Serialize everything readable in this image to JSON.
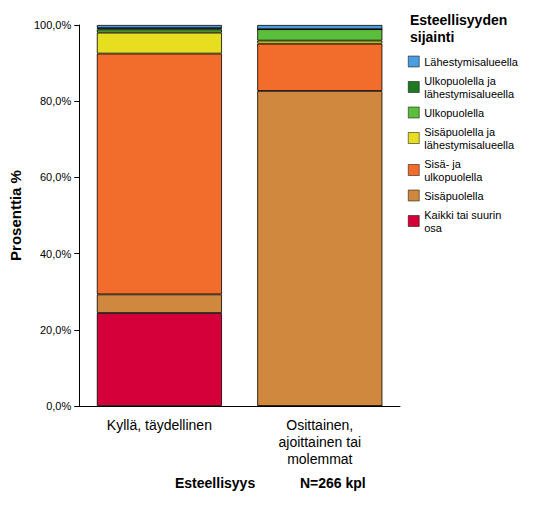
{
  "chart_data": {
    "type": "bar",
    "stacked": true,
    "orientation": "vertical",
    "grid": false,
    "legend": "right",
    "legend_title": "Esteellisyyden\nsijainti",
    "x_label": "Esteellisyys",
    "annotation": "N=266 kpl",
    "y_label": "Prosenttia %",
    "categories": [
      "Kyllä, täydellinen",
      "Osittainen,\najoittainen tai\nmolemmat"
    ],
    "ylim": [
      0,
      100
    ],
    "yticks": [
      {
        "value": 0,
        "label": "0,0%"
      },
      {
        "value": 20,
        "label": "20,0%"
      },
      {
        "value": 40,
        "label": "40,0%"
      },
      {
        "value": 60,
        "label": "60,0%"
      },
      {
        "value": 80,
        "label": "80,0%"
      },
      {
        "value": 100,
        "label": "100,0%"
      }
    ],
    "series": [
      {
        "name": "Kaikki tai suurin\nosa",
        "color": "#d5003a",
        "values": [
          24.4,
          0
        ]
      },
      {
        "name": "Sisäpuolella",
        "color": "#d0883f",
        "values": [
          4.9,
          82.7
        ]
      },
      {
        "name": "Sisä- ja\nulkopuolella",
        "color": "#f26c2c",
        "values": [
          63.2,
          12.4
        ]
      },
      {
        "name": "Sisäpuolella ja\nlähestymisalueella",
        "color": "#e6de1e",
        "values": [
          5.5,
          0.8
        ]
      },
      {
        "name": "Ulkopuolella",
        "color": "#5cbf3c",
        "values": [
          0.8,
          3.0
        ]
      },
      {
        "name": "Ulkopuolella ja\nlähestymisalueella",
        "color": "#1d7a23",
        "values": [
          0.4,
          0
        ]
      },
      {
        "name": "Lähestymisalueella",
        "color": "#4b9de0",
        "values": [
          0.8,
          1.1
        ]
      }
    ]
  }
}
